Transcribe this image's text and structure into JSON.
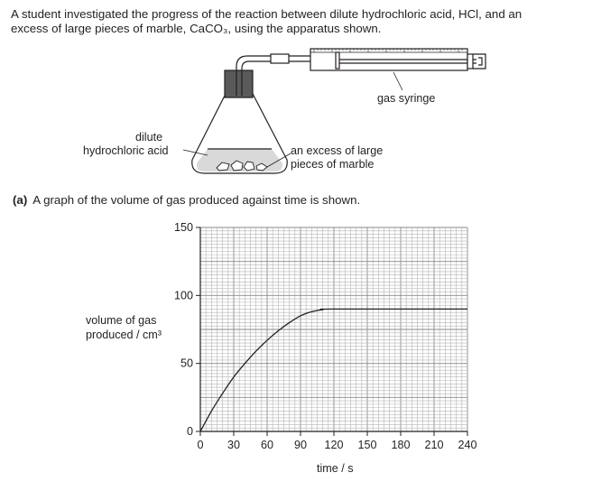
{
  "intro": {
    "line1": "A student investigated the progress of the reaction between dilute hydrochloric acid, HCl, and an",
    "line2": "excess of large pieces of marble, CaCO₃, using the apparatus shown."
  },
  "apparatus": {
    "syringe_label": "gas syringe",
    "acid_label_line1": "dilute",
    "acid_label_line2": "hydrochloric acid",
    "marble_label_line1": "an excess of large",
    "marble_label_line2": "pieces of marble"
  },
  "part_a": {
    "number": "(a)",
    "text": "A graph of the volume of gas produced against time is shown."
  },
  "chart_data": {
    "type": "line",
    "title": "",
    "xlabel": "time / s",
    "ylabel_line1": "volume of gas",
    "ylabel_line2": "produced / cm³",
    "xlim": [
      0,
      240
    ],
    "ylim": [
      0,
      150
    ],
    "x_ticks": [
      0,
      30,
      60,
      90,
      120,
      150,
      180,
      210,
      240
    ],
    "y_ticks": [
      0,
      50,
      100,
      150
    ],
    "grid": true,
    "series": [
      {
        "x": [
          0,
          10,
          20,
          30,
          40,
          50,
          60,
          70,
          80,
          90,
          100,
          110,
          120,
          240
        ],
        "y": [
          0,
          15,
          28,
          40,
          50,
          59,
          67,
          74,
          80,
          85,
          88,
          89.5,
          90,
          90
        ]
      }
    ]
  }
}
